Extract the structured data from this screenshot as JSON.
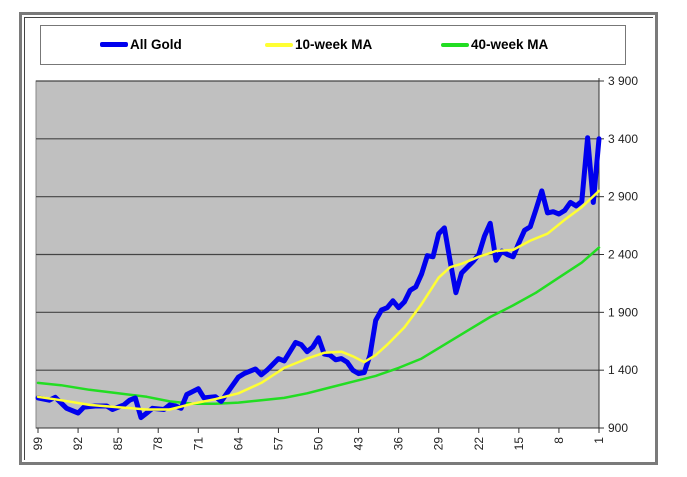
{
  "chart_data": {
    "type": "line",
    "title": "",
    "xlabel": "",
    "ylabel": "",
    "x_direction": "descending weeks (99 on left to 1 on right)",
    "xticks": [
      "99",
      "92",
      "85",
      "78",
      "71",
      "64",
      "57",
      "50",
      "43",
      "36",
      "29",
      "22",
      "15",
      "8",
      "1"
    ],
    "yticks": [
      "900",
      "1 400",
      "1 900",
      "2 400",
      "2 900",
      "3 400",
      "3 900"
    ],
    "ylim": [
      900,
      3900
    ],
    "xlim": [
      99,
      1
    ],
    "y_axis_position": "right",
    "grid": "horizontal major gridlines",
    "plot_background": "#c0c0c0",
    "legend_position": "top (boxed)",
    "series": [
      {
        "name": "All Gold",
        "color": "#0000ee",
        "x": [
          99,
          97,
          96,
          94,
          92,
          91,
          89,
          87,
          86,
          85,
          84,
          83,
          82,
          81,
          80,
          79,
          77,
          76,
          75,
          74,
          73,
          71,
          70,
          68,
          67,
          66,
          64,
          63,
          61,
          60,
          59,
          57,
          56,
          55,
          54,
          53,
          52,
          51,
          50,
          49,
          48,
          47,
          46,
          45,
          44,
          43,
          42,
          41,
          40,
          39,
          38,
          37,
          36,
          35,
          34,
          33,
          32,
          31,
          30,
          29,
          28,
          27,
          26,
          25,
          24,
          23,
          22,
          21,
          20,
          19,
          18,
          17,
          16,
          15,
          14,
          13,
          12,
          11,
          10,
          9,
          8,
          7,
          6,
          5,
          4,
          3,
          2,
          1
        ],
        "values": [
          1160,
          1140,
          1165,
          1070,
          1030,
          1080,
          1090,
          1090,
          1060,
          1080,
          1100,
          1140,
          1160,
          990,
          1030,
          1070,
          1060,
          1100,
          1090,
          1070,
          1190,
          1240,
          1160,
          1170,
          1130,
          1200,
          1340,
          1370,
          1410,
          1360,
          1400,
          1500,
          1480,
          1560,
          1640,
          1620,
          1560,
          1600,
          1680,
          1540,
          1530,
          1490,
          1500,
          1470,
          1400,
          1370,
          1380,
          1530,
          1830,
          1920,
          1940,
          2000,
          1940,
          1990,
          2090,
          2120,
          2230,
          2390,
          2380,
          2580,
          2630,
          2340,
          2070,
          2240,
          2290,
          2340,
          2400,
          2560,
          2670,
          2350,
          2430,
          2400,
          2380,
          2500,
          2610,
          2640,
          2790,
          2950,
          2760,
          2770,
          2750,
          2780,
          2850,
          2820,
          2860,
          3410,
          2850,
          3400
        ]
      },
      {
        "name": "10-week MA",
        "color": "#ffff33",
        "x": [
          99,
          95,
          90,
          85,
          80,
          76,
          72,
          68,
          64,
          60,
          56,
          52,
          49,
          46,
          44,
          42,
          40,
          38,
          35,
          32,
          29,
          27,
          25,
          22,
          19,
          16,
          13,
          10,
          7,
          4,
          1
        ],
        "values": [
          1170,
          1140,
          1100,
          1080,
          1060,
          1060,
          1110,
          1150,
          1200,
          1290,
          1420,
          1500,
          1550,
          1560,
          1520,
          1470,
          1530,
          1620,
          1770,
          1970,
          2200,
          2290,
          2320,
          2380,
          2430,
          2440,
          2520,
          2580,
          2700,
          2810,
          2950
        ]
      },
      {
        "name": "40-week MA",
        "color": "#22dd22",
        "x": [
          99,
          95,
          90,
          85,
          80,
          76,
          72,
          68,
          64,
          60,
          56,
          52,
          48,
          44,
          40,
          36,
          32,
          28,
          24,
          20,
          16,
          12,
          8,
          4,
          1
        ],
        "values": [
          1290,
          1270,
          1230,
          1200,
          1170,
          1130,
          1110,
          1110,
          1120,
          1140,
          1160,
          1200,
          1250,
          1300,
          1350,
          1420,
          1500,
          1620,
          1740,
          1860,
          1960,
          2070,
          2200,
          2330,
          2460
        ]
      }
    ]
  }
}
